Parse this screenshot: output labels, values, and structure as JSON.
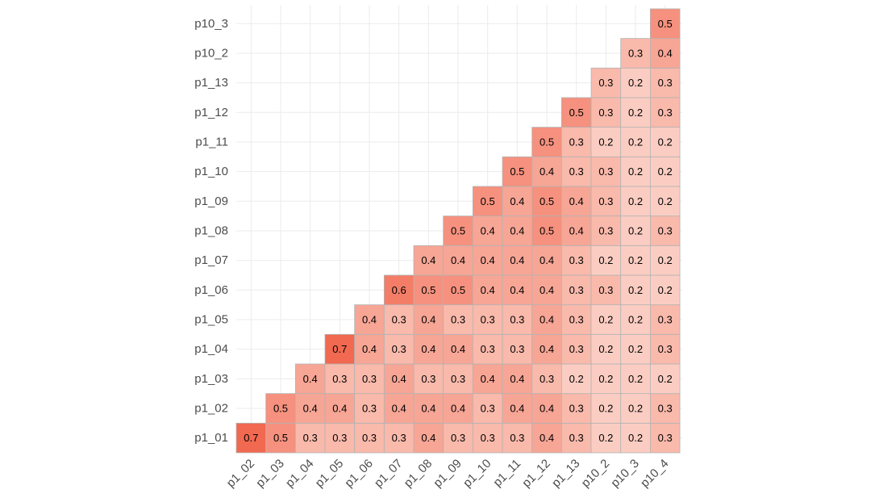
{
  "chart_data": {
    "type": "heatmap",
    "title": "",
    "xlabel": "",
    "ylabel": "",
    "x_categories": [
      "p1_02",
      "p1_03",
      "p1_04",
      "p1_05",
      "p1_06",
      "p1_07",
      "p1_08",
      "p1_09",
      "p1_10",
      "p1_11",
      "p1_12",
      "p1_13",
      "p10_2",
      "p10_3",
      "p10_4"
    ],
    "y_categories": [
      "p1_01",
      "p1_02",
      "p1_03",
      "p1_04",
      "p1_05",
      "p1_06",
      "p1_07",
      "p1_08",
      "p1_09",
      "p1_10",
      "p1_11",
      "p1_12",
      "p1_13",
      "p10_2",
      "p10_3"
    ],
    "values": [
      [
        0.7,
        0.5,
        0.3,
        0.3,
        0.3,
        0.3,
        0.4,
        0.3,
        0.3,
        0.3,
        0.4,
        0.3,
        0.2,
        0.2,
        0.3
      ],
      [
        null,
        0.5,
        0.4,
        0.4,
        0.3,
        0.4,
        0.4,
        0.4,
        0.3,
        0.4,
        0.4,
        0.3,
        0.2,
        0.2,
        0.3
      ],
      [
        null,
        null,
        0.4,
        0.3,
        0.3,
        0.4,
        0.3,
        0.3,
        0.4,
        0.4,
        0.3,
        0.2,
        0.2,
        0.2,
        0.2
      ],
      [
        null,
        null,
        null,
        0.7,
        0.4,
        0.3,
        0.4,
        0.4,
        0.3,
        0.3,
        0.4,
        0.3,
        0.2,
        0.2,
        0.3
      ],
      [
        null,
        null,
        null,
        null,
        0.4,
        0.3,
        0.4,
        0.3,
        0.3,
        0.3,
        0.4,
        0.3,
        0.2,
        0.2,
        0.3
      ],
      [
        null,
        null,
        null,
        null,
        null,
        0.6,
        0.5,
        0.5,
        0.4,
        0.4,
        0.4,
        0.3,
        0.3,
        0.2,
        0.2
      ],
      [
        null,
        null,
        null,
        null,
        null,
        null,
        0.4,
        0.4,
        0.4,
        0.4,
        0.4,
        0.3,
        0.2,
        0.2,
        0.2
      ],
      [
        null,
        null,
        null,
        null,
        null,
        null,
        null,
        0.5,
        0.4,
        0.4,
        0.5,
        0.4,
        0.3,
        0.2,
        0.3
      ],
      [
        null,
        null,
        null,
        null,
        null,
        null,
        null,
        null,
        0.5,
        0.4,
        0.5,
        0.4,
        0.3,
        0.2,
        0.2
      ],
      [
        null,
        null,
        null,
        null,
        null,
        null,
        null,
        null,
        null,
        0.5,
        0.4,
        0.3,
        0.3,
        0.2,
        0.2
      ],
      [
        null,
        null,
        null,
        null,
        null,
        null,
        null,
        null,
        null,
        null,
        0.5,
        0.3,
        0.2,
        0.2,
        0.2
      ],
      [
        null,
        null,
        null,
        null,
        null,
        null,
        null,
        null,
        null,
        null,
        null,
        0.5,
        0.3,
        0.2,
        0.3
      ],
      [
        null,
        null,
        null,
        null,
        null,
        null,
        null,
        null,
        null,
        null,
        null,
        null,
        0.3,
        0.2,
        0.3
      ],
      [
        null,
        null,
        null,
        null,
        null,
        null,
        null,
        null,
        null,
        null,
        null,
        null,
        null,
        0.3,
        0.4
      ],
      [
        null,
        null,
        null,
        null,
        null,
        null,
        null,
        null,
        null,
        null,
        null,
        null,
        null,
        null,
        0.5
      ]
    ],
    "color_scale": {
      "low": "#fff5f0",
      "high": "#ef5539",
      "domain": [
        0,
        0.8
      ]
    },
    "grid": true,
    "legend": "none"
  }
}
